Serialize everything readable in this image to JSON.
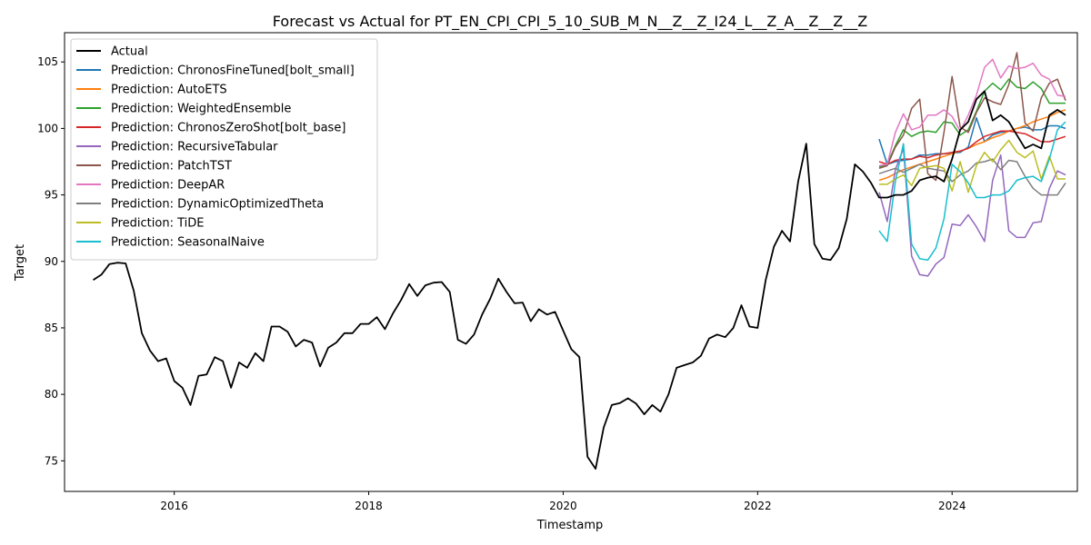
{
  "chart_data": {
    "type": "line",
    "title": "Forecast vs Actual for PT_EN_CPI_CPI_5_10_SUB_M_N__Z__Z_I24_L__Z_A__Z__Z__Z",
    "xlabel": "Timestamp",
    "ylabel": "Target",
    "xlim": [
      "2014-11-15",
      "2025-04-15"
    ],
    "ylim": [
      72.7,
      107.2
    ],
    "xticks": [
      "2016",
      "2018",
      "2020",
      "2022",
      "2024"
    ],
    "yticks": [
      75,
      80,
      85,
      90,
      95,
      100,
      105
    ],
    "grid": false,
    "legend_position": "top-left",
    "actual": {
      "name": "Actual",
      "color": "#000000",
      "x": [
        "2015-03",
        "2015-04",
        "2015-05",
        "2015-06",
        "2015-07",
        "2015-08",
        "2015-09",
        "2015-10",
        "2015-11",
        "2015-12",
        "2016-01",
        "2016-02",
        "2016-03",
        "2016-04",
        "2016-05",
        "2016-06",
        "2016-07",
        "2016-08",
        "2016-09",
        "2016-10",
        "2016-11",
        "2016-12",
        "2017-01",
        "2017-02",
        "2017-03",
        "2017-04",
        "2017-05",
        "2017-06",
        "2017-07",
        "2017-08",
        "2017-09",
        "2017-10",
        "2017-11",
        "2017-12",
        "2018-01",
        "2018-02",
        "2018-03",
        "2018-04",
        "2018-05",
        "2018-06",
        "2018-07",
        "2018-08",
        "2018-09",
        "2018-10",
        "2018-11",
        "2018-12",
        "2019-01",
        "2019-02",
        "2019-03",
        "2019-04",
        "2019-05",
        "2019-06",
        "2019-07",
        "2019-08",
        "2019-09",
        "2019-10",
        "2019-11",
        "2019-12",
        "2020-01",
        "2020-02",
        "2020-03",
        "2020-04",
        "2020-05",
        "2020-06",
        "2020-07",
        "2020-08",
        "2020-09",
        "2020-10",
        "2020-11",
        "2020-12",
        "2021-01",
        "2021-02",
        "2021-03",
        "2021-04",
        "2021-05",
        "2021-06",
        "2021-07",
        "2021-08",
        "2021-09",
        "2021-10",
        "2021-11",
        "2021-12",
        "2022-01",
        "2022-02",
        "2022-03",
        "2022-04",
        "2022-05",
        "2022-06",
        "2022-07",
        "2022-08",
        "2022-09",
        "2022-10",
        "2022-11",
        "2022-12",
        "2023-01",
        "2023-02",
        "2023-03",
        "2023-04",
        "2023-05",
        "2023-06",
        "2023-07",
        "2023-08",
        "2023-09",
        "2023-10",
        "2023-11",
        "2023-12",
        "2024-01",
        "2024-02",
        "2024-03",
        "2024-04",
        "2024-05",
        "2024-06",
        "2024-07",
        "2024-08",
        "2024-09",
        "2024-10",
        "2024-11",
        "2024-12",
        "2025-01",
        "2025-02",
        "2025-03"
      ],
      "values": [
        88.6,
        89.0,
        89.8,
        89.9,
        89.85,
        87.8,
        84.6,
        83.3,
        82.5,
        82.7,
        81.0,
        80.5,
        79.2,
        81.4,
        81.5,
        82.8,
        82.5,
        80.5,
        82.4,
        82.0,
        83.1,
        82.5,
        85.1,
        85.1,
        84.7,
        83.6,
        84.1,
        83.9,
        82.1,
        83.5,
        83.9,
        84.6,
        84.6,
        85.3,
        85.3,
        85.8,
        84.9,
        86.1,
        87.1,
        88.3,
        87.4,
        88.2,
        88.4,
        88.45,
        87.7,
        84.1,
        83.8,
        84.5,
        86.0,
        87.2,
        88.7,
        87.7,
        86.85,
        86.9,
        85.5,
        86.4,
        86.0,
        86.2,
        84.8,
        83.4,
        82.8,
        75.3,
        74.4,
        77.5,
        79.2,
        79.35,
        79.7,
        79.3,
        78.5,
        79.2,
        78.7,
        80.0,
        82.0,
        82.2,
        82.4,
        82.9,
        84.2,
        84.5,
        84.3,
        85.0,
        86.7,
        85.1,
        85.0,
        88.6,
        91.1,
        92.3,
        91.5,
        96.0,
        98.85,
        91.3,
        90.2,
        90.1,
        91.0,
        93.2,
        97.3,
        96.75,
        95.9,
        94.8,
        94.8,
        95.0,
        95.0,
        95.3,
        96.1,
        96.3,
        96.4,
        96.0,
        97.7,
        99.9,
        100.5,
        102.2,
        102.8,
        100.6,
        101.0,
        100.5,
        99.5,
        98.5,
        98.8,
        98.5,
        101.0,
        101.4,
        101.0
      ]
    },
    "forecast_x": [
      "2023-04",
      "2023-05",
      "2023-06",
      "2023-07",
      "2023-08",
      "2023-09",
      "2023-10",
      "2023-11",
      "2023-12",
      "2024-01",
      "2024-02",
      "2024-03",
      "2024-04",
      "2024-05",
      "2024-06",
      "2024-07",
      "2024-08",
      "2024-09",
      "2024-10",
      "2024-11",
      "2024-12",
      "2025-01",
      "2025-02",
      "2025-03"
    ],
    "series": [
      {
        "name": "Prediction: ChronosFineTuned[bolt_small]",
        "color": "#1f77b4",
        "values": [
          99.2,
          97.3,
          97.5,
          97.6,
          97.7,
          98.0,
          98.0,
          98.1,
          98.1,
          98.15,
          98.2,
          98.6,
          100.8,
          99.0,
          99.5,
          99.7,
          99.8,
          100.0,
          100.1,
          99.9,
          99.9,
          100.2,
          100.2,
          100.0
        ]
      },
      {
        "name": "Prediction: AutoETS",
        "color": "#ff7f0e",
        "values": [
          96.1,
          96.3,
          96.6,
          96.9,
          97.1,
          97.3,
          97.5,
          97.7,
          97.9,
          98.1,
          98.3,
          98.5,
          98.8,
          99.0,
          99.3,
          99.5,
          99.8,
          100.0,
          100.2,
          100.5,
          100.7,
          100.9,
          101.2,
          101.4
        ]
      },
      {
        "name": "Prediction: WeightedEnsemble",
        "color": "#2ca02c",
        "values": [
          97.1,
          97.3,
          98.7,
          99.9,
          99.4,
          99.7,
          99.8,
          99.7,
          100.5,
          100.4,
          99.5,
          99.9,
          101.3,
          102.8,
          103.4,
          102.9,
          103.7,
          103.1,
          103.0,
          103.5,
          103.0,
          101.9,
          101.9,
          101.9
        ]
      },
      {
        "name": "Prediction: ChronosZeroShot[bolt_base]",
        "color": "#d62728",
        "values": [
          97.5,
          97.3,
          97.6,
          97.7,
          97.7,
          97.9,
          97.8,
          98.0,
          98.1,
          98.2,
          98.3,
          98.5,
          99.0,
          99.4,
          99.6,
          99.8,
          99.8,
          99.7,
          99.6,
          99.3,
          99.0,
          99.0,
          99.2,
          99.4
        ]
      },
      {
        "name": "Prediction: RecursiveTabular",
        "color": "#9467bd",
        "values": [
          95.2,
          93.0,
          96.9,
          98.5,
          90.4,
          89.0,
          88.9,
          89.8,
          90.3,
          92.8,
          92.7,
          93.5,
          92.6,
          91.5,
          96.1,
          98.0,
          92.3,
          91.8,
          91.8,
          92.9,
          93.0,
          95.5,
          96.8,
          96.5
        ]
      },
      {
        "name": "Prediction: PatchTST",
        "color": "#8c564b",
        "values": [
          97.0,
          97.2,
          98.6,
          99.5,
          101.5,
          102.2,
          96.6,
          96.1,
          99.7,
          103.9,
          100.1,
          99.7,
          101.2,
          102.3,
          102.0,
          101.8,
          103.3,
          105.7,
          100.4,
          99.8,
          102.3,
          103.4,
          103.7,
          102.1
        ]
      },
      {
        "name": "Prediction: DeepAR",
        "color": "#e377c2",
        "values": [
          97.2,
          97.3,
          99.7,
          101.1,
          99.9,
          100.1,
          101.0,
          101.0,
          101.4,
          100.9,
          99.8,
          101.0,
          102.5,
          104.6,
          105.2,
          103.8,
          104.7,
          104.5,
          104.6,
          104.9,
          104.0,
          103.7,
          102.5,
          102.4
        ]
      },
      {
        "name": "Prediction: DynamicOptimizedTheta",
        "color": "#7f7f7f",
        "values": [
          96.6,
          96.8,
          97.0,
          96.7,
          97.0,
          97.3,
          97.0,
          96.9,
          96.8,
          96.0,
          96.5,
          96.8,
          97.4,
          97.5,
          97.7,
          96.9,
          97.6,
          97.5,
          96.4,
          95.5,
          95.0,
          95.0,
          95.0,
          95.9
        ]
      },
      {
        "name": "Prediction: TiDE",
        "color": "#bcbd22",
        "values": [
          95.8,
          95.8,
          96.2,
          96.5,
          95.7,
          97.0,
          97.1,
          97.2,
          97.0,
          95.3,
          97.5,
          95.2,
          97.2,
          98.2,
          97.5,
          98.4,
          99.1,
          98.2,
          97.8,
          98.3,
          96.2,
          97.9,
          96.2,
          96.2
        ]
      },
      {
        "name": "Prediction: SeasonalNaive",
        "color": "#17becf",
        "values": [
          92.3,
          91.5,
          96.0,
          98.85,
          91.3,
          90.2,
          90.1,
          91.0,
          93.2,
          97.3,
          96.75,
          95.9,
          94.8,
          94.8,
          95.0,
          95.0,
          95.3,
          96.1,
          96.3,
          96.4,
          96.0,
          97.7,
          99.9,
          100.5
        ]
      }
    ]
  }
}
